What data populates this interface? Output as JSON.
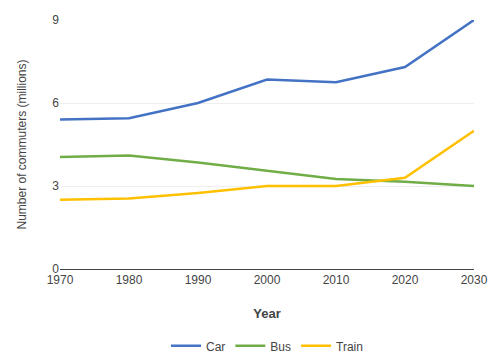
{
  "chart_data": {
    "type": "line",
    "xlabel": "Year",
    "ylabel": "Number of commuters (millions)",
    "x": [
      1970,
      1980,
      1990,
      2000,
      2010,
      2020,
      2030
    ],
    "series": [
      {
        "name": "Car",
        "color": "#4472c4",
        "values": [
          5.4,
          5.45,
          6.0,
          6.85,
          6.75,
          7.3,
          9.0
        ]
      },
      {
        "name": "Bus",
        "color": "#70ad47",
        "values": [
          4.05,
          4.1,
          3.85,
          3.55,
          3.25,
          3.15,
          3.0
        ]
      },
      {
        "name": "Train",
        "color": "#ffc000",
        "values": [
          2.5,
          2.55,
          2.75,
          3.0,
          3.0,
          3.3,
          5.0
        ]
      }
    ],
    "xlim": [
      1970,
      2030
    ],
    "ylim": [
      0,
      9
    ],
    "xticks": [
      1970,
      1980,
      1990,
      2000,
      2010,
      2020,
      2030
    ],
    "yticks": [
      0,
      3,
      6,
      9
    ],
    "grid": "y",
    "legend": "bottom"
  }
}
